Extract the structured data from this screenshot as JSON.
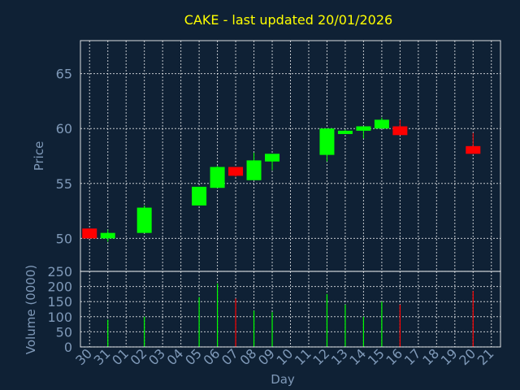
{
  "chart_data": {
    "type": "candlestick",
    "title": "CAKE - last updated 20/01/2026",
    "xlabel": "Day",
    "price_panel": {
      "ylabel": "Price",
      "ylim": [
        47,
        68
      ],
      "yticks": [
        50,
        55,
        60,
        65
      ]
    },
    "volume_panel": {
      "ylabel": "Volume (0000)",
      "ylim": [
        0,
        250
      ],
      "yticks": [
        0,
        50,
        100,
        150,
        200,
        250
      ]
    },
    "x_ticks": [
      "30",
      "31",
      "01",
      "02",
      "03",
      "04",
      "05",
      "06",
      "07",
      "08",
      "09",
      "10",
      "11",
      "12",
      "13",
      "14",
      "15",
      "16",
      "17",
      "18",
      "19",
      "20",
      "21"
    ],
    "grid": true,
    "colors": {
      "up": "#00ff00",
      "down": "#ff0000",
      "title": "#ffff00",
      "axis_text": "#7f99b8",
      "background": "#0f2135"
    },
    "candles": [
      {
        "day": "30",
        "open": 50.9,
        "high": 50.9,
        "low": 50.0,
        "close": 50.0,
        "volume": 0
      },
      {
        "day": "31",
        "open": 50.0,
        "high": 50.8,
        "low": 49.7,
        "close": 50.5,
        "volume": 90
      },
      {
        "day": "02",
        "open": 50.5,
        "high": 53.0,
        "low": 50.5,
        "close": 52.8,
        "volume": 100
      },
      {
        "day": "05",
        "open": 53.0,
        "high": 54.7,
        "low": 53.0,
        "close": 54.7,
        "volume": 165
      },
      {
        "day": "06",
        "open": 54.6,
        "high": 56.6,
        "low": 54.6,
        "close": 56.5,
        "volume": 210
      },
      {
        "day": "07",
        "open": 56.5,
        "high": 56.5,
        "low": 55.6,
        "close": 55.7,
        "volume": 160
      },
      {
        "day": "08",
        "open": 55.3,
        "high": 57.8,
        "low": 55.3,
        "close": 57.1,
        "volume": 120
      },
      {
        "day": "09",
        "open": 57.0,
        "high": 57.7,
        "low": 56.2,
        "close": 57.7,
        "volume": 115
      },
      {
        "day": "12",
        "open": 57.6,
        "high": 60.0,
        "low": 57.0,
        "close": 60.0,
        "volume": 175
      },
      {
        "day": "13",
        "open": 59.5,
        "high": 59.9,
        "low": 59.5,
        "close": 59.8,
        "volume": 140
      },
      {
        "day": "14",
        "open": 59.8,
        "high": 60.2,
        "low": 59.1,
        "close": 60.2,
        "volume": 100
      },
      {
        "day": "15",
        "open": 60.0,
        "high": 61.0,
        "low": 60.0,
        "close": 60.8,
        "volume": 150
      },
      {
        "day": "16",
        "open": 60.2,
        "high": 60.8,
        "low": 59.4,
        "close": 59.4,
        "volume": 140
      },
      {
        "day": "20",
        "open": 58.4,
        "high": 59.6,
        "low": 57.7,
        "close": 57.7,
        "volume": 185
      }
    ]
  }
}
